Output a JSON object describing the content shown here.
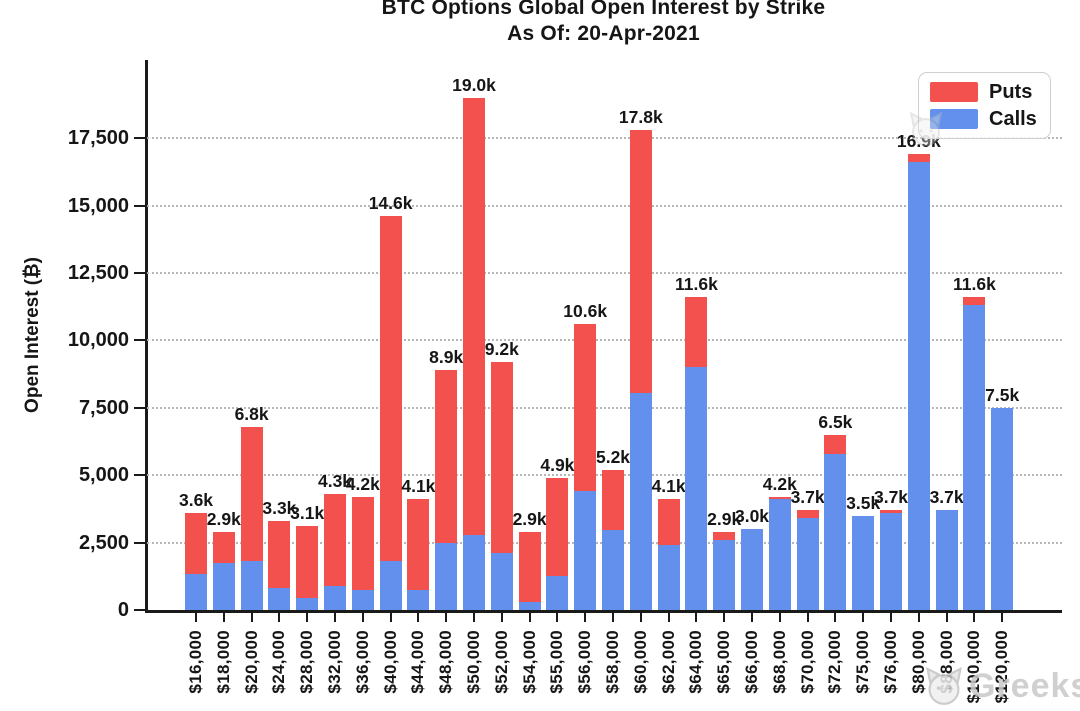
{
  "title": {
    "line1": "BTC Options Global Open Interest by Strike",
    "line2": "As Of: 20-Apr-2021"
  },
  "y_axis": {
    "label": "Open Interest (₿)",
    "tick_labels": [
      "0",
      "2,500",
      "5,000",
      "7,500",
      "10,000",
      "12,500",
      "15,000",
      "17,500"
    ],
    "tick_values": [
      0,
      2500,
      5000,
      7500,
      10000,
      12500,
      15000,
      17500
    ]
  },
  "legend": {
    "items": [
      {
        "label": "Puts",
        "color": "#F3514E"
      },
      {
        "label": "Calls",
        "color": "#6290EC"
      }
    ]
  },
  "watermark": {
    "text": "Greeks",
    "logo": "cat-logo-icon"
  },
  "chart_data": {
    "type": "bar",
    "stacked": true,
    "title": "BTC Options Global Open Interest by Strike",
    "subtitle": "As Of: 20-Apr-2021",
    "xlabel": "",
    "ylabel": "Open Interest (₿)",
    "ylim": [
      0,
      20400
    ],
    "yticks": [
      0,
      2500,
      5000,
      7500,
      10000,
      12500,
      15000,
      17500
    ],
    "grid": "horizontal-dotted",
    "legend_position": "top-right",
    "categories": [
      "$16,000",
      "$18,000",
      "$20,000",
      "$24,000",
      "$28,000",
      "$32,000",
      "$36,000",
      "$40,000",
      "$44,000",
      "$48,000",
      "$50,000",
      "$52,000",
      "$54,000",
      "$55,000",
      "$56,000",
      "$58,000",
      "$60,000",
      "$62,000",
      "$64,000",
      "$65,000",
      "$66,000",
      "$68,000",
      "$70,000",
      "$72,000",
      "$75,000",
      "$76,000",
      "$80,000",
      "$88,000",
      "$100,000",
      "$120,000"
    ],
    "series": [
      {
        "name": "Puts",
        "color": "#F3514E",
        "values": [
          2250,
          1150,
          5000,
          2500,
          2650,
          3400,
          3450,
          12800,
          3350,
          6400,
          16200,
          7100,
          2600,
          3650,
          6200,
          2250,
          9750,
          1700,
          2600,
          300,
          0,
          100,
          300,
          700,
          0,
          100,
          300,
          0,
          300,
          0
        ]
      },
      {
        "name": "Calls",
        "color": "#6290EC",
        "values": [
          1350,
          1750,
          1800,
          800,
          450,
          900,
          750,
          1800,
          750,
          2500,
          2800,
          2100,
          300,
          1250,
          4400,
          2950,
          8050,
          2400,
          9000,
          2600,
          3000,
          4100,
          3400,
          5800,
          3500,
          3600,
          16600,
          3700,
          11300,
          7500
        ]
      }
    ],
    "totals": [
      3600,
      2900,
      6800,
      3300,
      3100,
      4300,
      4200,
      14600,
      4100,
      8900,
      19000,
      9200,
      2900,
      4900,
      10600,
      5200,
      17800,
      4100,
      11600,
      2900,
      3000,
      4200,
      3700,
      6500,
      3500,
      3700,
      16900,
      3700,
      11600,
      7500
    ],
    "bar_labels": [
      "3.6k",
      "2.9k",
      "6.8k",
      "3.3k",
      "3.1k",
      "4.3k",
      "4.2k",
      "14.6k",
      "4.1k",
      "8.9k",
      "19.0k",
      "9.2k",
      "2.9k",
      "4.9k",
      "10.6k",
      "5.2k",
      "17.8k",
      "4.1k",
      "11.6k",
      "2.9k",
      "3.0k",
      "4.2k",
      "3.7k",
      "6.5k",
      "3.5k",
      "3.7k",
      "16.9k",
      "3.7k",
      "11.6k",
      "7.5k"
    ]
  }
}
